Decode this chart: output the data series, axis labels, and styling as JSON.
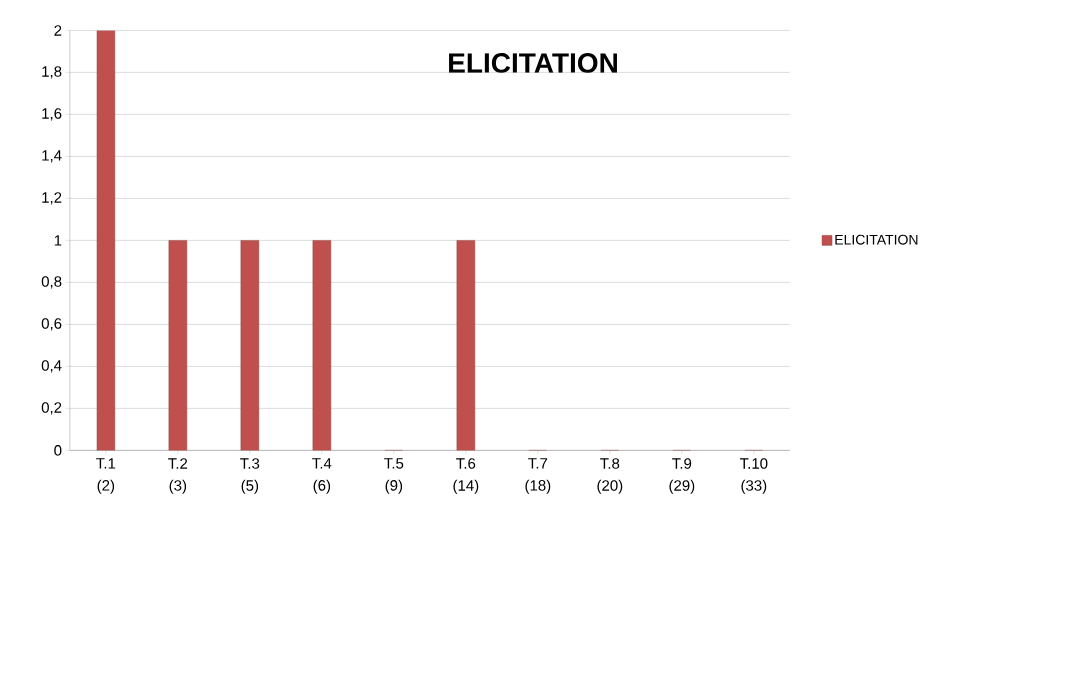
{
  "chart_data": {
    "type": "bar",
    "title": "ELICITATION",
    "categories": [
      "T.1 (2)",
      "T.2 (3)",
      "T.3 (5)",
      "T.4 (6)",
      "T.5 (9)",
      "T.6 (14)",
      "T.7 (18)",
      "T.8 (20)",
      "T.9 (29)",
      "T.10 (33)"
    ],
    "series": [
      {
        "name": "ELICITATION",
        "color": "#c0504d",
        "values": [
          2,
          1,
          1,
          1,
          0,
          1,
          0,
          0,
          0,
          0
        ]
      }
    ],
    "ylim": [
      0,
      2
    ],
    "yticks": [
      0,
      {
        "value": 0.2,
        "label": "0,2"
      },
      {
        "value": 0.4,
        "label": "0,4"
      },
      {
        "value": 0.6,
        "label": "0,6"
      },
      {
        "value": 0.8,
        "label": "0,8"
      },
      1,
      {
        "value": 1.2,
        "label": "1,2"
      },
      {
        "value": 1.4,
        "label": "1,4"
      },
      {
        "value": 1.6,
        "label": "1,6"
      },
      {
        "value": 1.8,
        "label": "1,8"
      },
      2
    ],
    "grid": "y",
    "legend": "right"
  }
}
